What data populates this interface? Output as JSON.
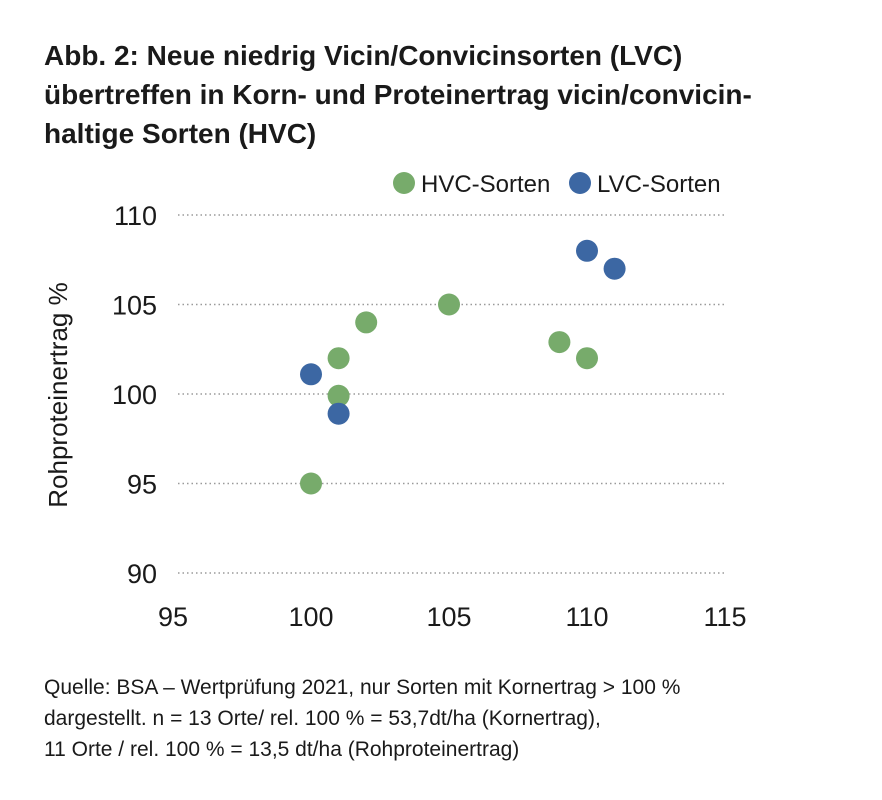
{
  "title_lines": [
    "Abb. 2: Neue niedrig Vicin/Convicinsorten (LVC)",
    "übertreffen in Korn- und Proteinertrag vicin/convicin-",
    "haltige Sorten (HVC)"
  ],
  "source_lines": [
    "Quelle: BSA – Wertprüfung 2021, nur Sorten mit Kornertrag > 100 %",
    "dargestellt. n = 13 Orte/ rel. 100 % = 53,7dt/ha (Kornertrag),",
    "11 Orte / rel. 100 % = 13,5 dt/ha (Rohproteinertrag)"
  ],
  "chart_data": {
    "type": "scatter",
    "ylabel": "Rohproteinertrag %",
    "xlabel": "",
    "xlim": [
      95,
      115
    ],
    "ylim": [
      90,
      110
    ],
    "x_ticks": [
      95,
      100,
      105,
      110,
      115
    ],
    "y_ticks": [
      90,
      95,
      100,
      105,
      110
    ],
    "grid": "horizontal dotted",
    "legend_position": "top-right",
    "series": [
      {
        "name": "HVC-Sorten",
        "color": "#77ab6b",
        "points": [
          {
            "x": 100,
            "y": 95
          },
          {
            "x": 101,
            "y": 99.9
          },
          {
            "x": 101,
            "y": 102
          },
          {
            "x": 102,
            "y": 104
          },
          {
            "x": 105,
            "y": 105
          },
          {
            "x": 109,
            "y": 102.9
          },
          {
            "x": 110,
            "y": 102
          }
        ]
      },
      {
        "name": "LVC-Sorten",
        "color": "#3c67a3",
        "points": [
          {
            "x": 100,
            "y": 101.1
          },
          {
            "x": 101,
            "y": 98.9
          },
          {
            "x": 110,
            "y": 108
          },
          {
            "x": 111,
            "y": 107
          }
        ]
      }
    ]
  }
}
